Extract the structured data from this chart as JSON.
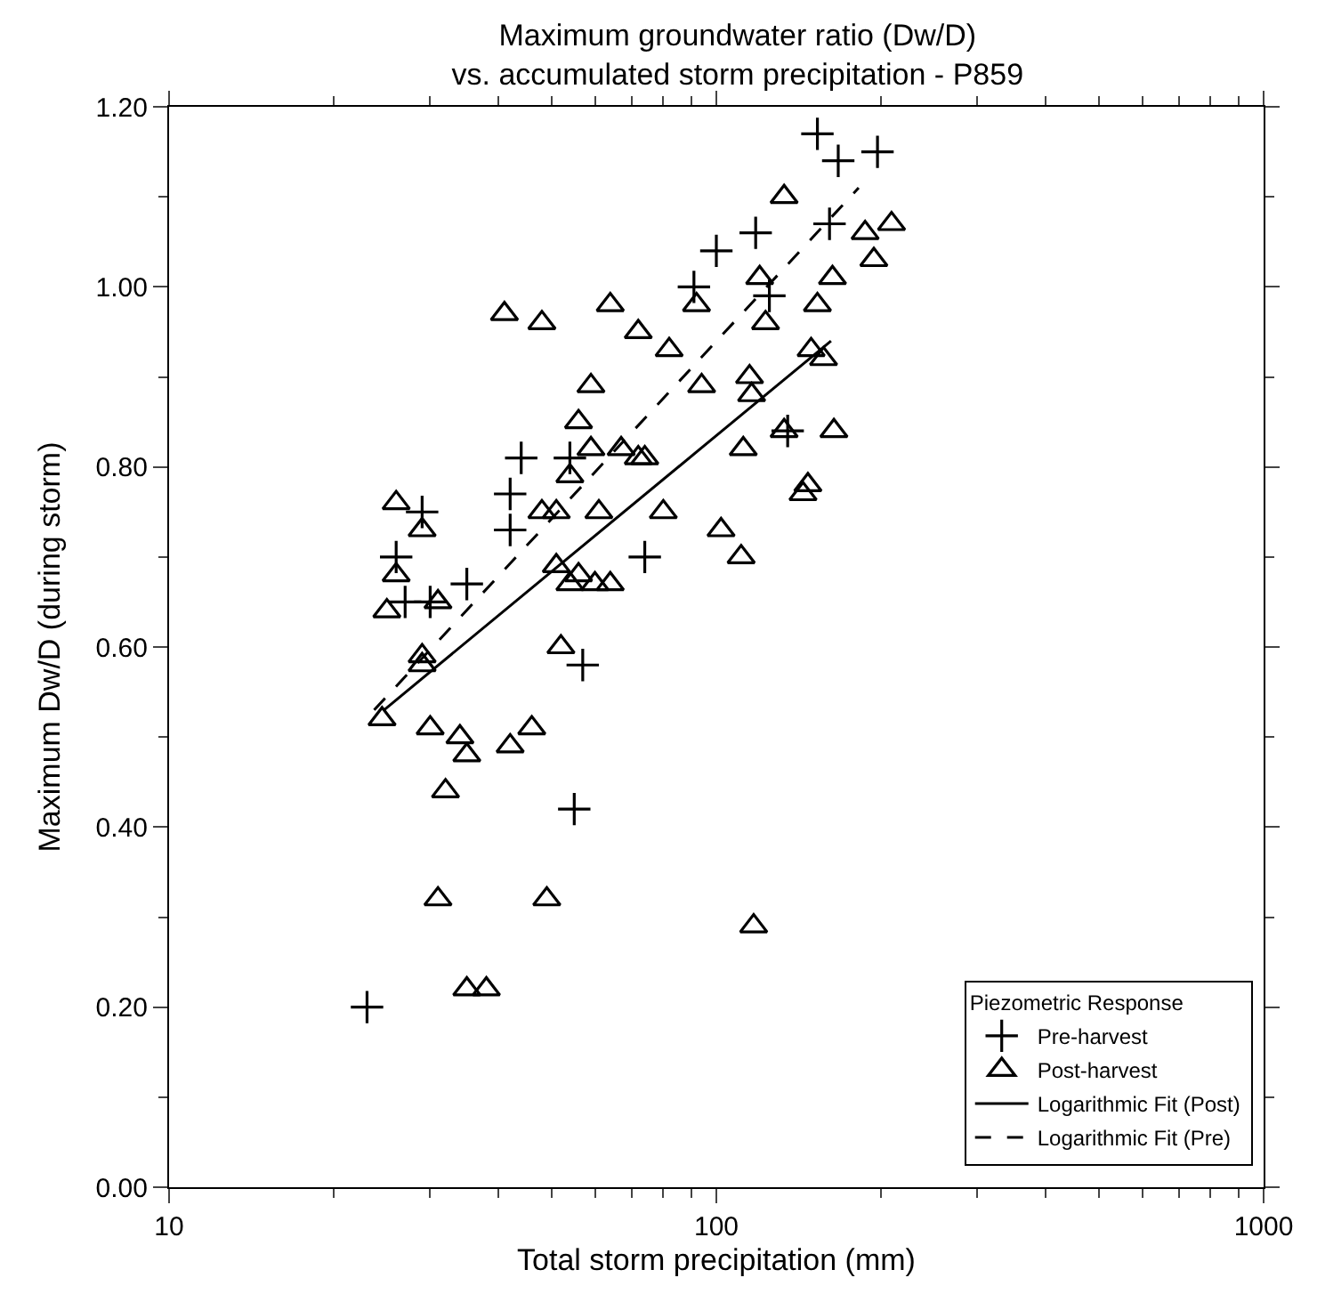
{
  "chart_data": {
    "type": "scatter",
    "title": "Maximum groundwater ratio (Dw/D)",
    "subtitle": "vs. accumulated storm precipitation - P859",
    "xlabel": "Total storm precipitation (mm)",
    "ylabel": "Maximum Dw/D (during storm)",
    "legend_title": "Piezometric Response",
    "log": "x",
    "xlim": [
      10,
      1000
    ],
    "xticks": [
      10,
      100,
      1000
    ],
    "ylim": [
      0,
      1.2
    ],
    "yticks": [
      {
        "value": 0,
        "label": "0.00"
      },
      {
        "value": 0.2,
        "label": "0.20"
      },
      {
        "value": 0.4,
        "label": "0.40"
      },
      {
        "value": 0.6,
        "label": "0.60"
      },
      {
        "value": 0.8,
        "label": "0.80"
      },
      {
        "value": 1.0,
        "label": "1.00"
      },
      {
        "value": 1.2,
        "label": "1.20"
      }
    ],
    "legend": "bottom right",
    "series": [
      {
        "name": "Pre-harvest",
        "marker": "cross",
        "color": "#000000",
        "x": [
          100,
          91,
          44,
          54,
          42,
          29,
          42,
          26,
          74,
          35,
          27,
          30,
          57,
          153,
          167,
          197,
          118,
          161,
          125,
          135,
          55,
          23
        ],
        "values": [
          1.04,
          1.0,
          0.81,
          0.81,
          0.77,
          0.75,
          0.73,
          0.7,
          0.7,
          0.67,
          0.65,
          0.65,
          0.58,
          1.17,
          1.14,
          1.15,
          1.06,
          1.07,
          0.99,
          0.84,
          0.42,
          0.2
        ]
      },
      {
        "name": "Post-harvest",
        "marker": "triangle",
        "color": "#000000",
        "x": [
          41,
          48,
          64,
          92,
          72,
          82,
          94,
          59,
          56,
          59,
          67,
          74,
          72,
          54,
          26,
          29,
          48,
          51,
          61,
          80,
          102,
          26,
          25,
          31,
          51,
          56,
          60,
          64,
          54,
          52,
          29,
          29,
          133,
          187,
          209,
          194,
          120,
          163,
          123,
          153,
          149,
          157,
          115,
          116,
          112,
          133,
          164,
          147,
          144,
          111,
          24.5,
          30,
          34,
          35,
          42,
          46,
          32,
          31,
          49,
          35,
          38,
          117
        ],
        "values": [
          0.97,
          0.96,
          0.98,
          0.98,
          0.95,
          0.93,
          0.89,
          0.89,
          0.85,
          0.82,
          0.82,
          0.81,
          0.81,
          0.79,
          0.76,
          0.73,
          0.75,
          0.75,
          0.75,
          0.75,
          0.73,
          0.68,
          0.64,
          0.65,
          0.69,
          0.68,
          0.67,
          0.67,
          0.67,
          0.6,
          0.59,
          0.58,
          1.1,
          1.06,
          1.07,
          1.03,
          1.01,
          1.01,
          0.96,
          0.98,
          0.93,
          0.92,
          0.9,
          0.88,
          0.82,
          0.84,
          0.84,
          0.78,
          0.77,
          0.7,
          0.52,
          0.51,
          0.5,
          0.48,
          0.49,
          0.51,
          0.44,
          0.32,
          0.32,
          0.22,
          0.22,
          0.29
        ]
      },
      {
        "name": "Logarithmic Fit (Post)",
        "type": "line",
        "line_style": "solid",
        "color": "#000000",
        "x": [
          24.7,
          162
        ],
        "values": [
          0.53,
          0.94
        ]
      },
      {
        "name": "Logarithmic Fit (Pre)",
        "type": "line",
        "line_style": "dashed",
        "color": "#000000",
        "x": [
          23.7,
          182
        ],
        "values": [
          0.53,
          1.11
        ]
      }
    ]
  }
}
